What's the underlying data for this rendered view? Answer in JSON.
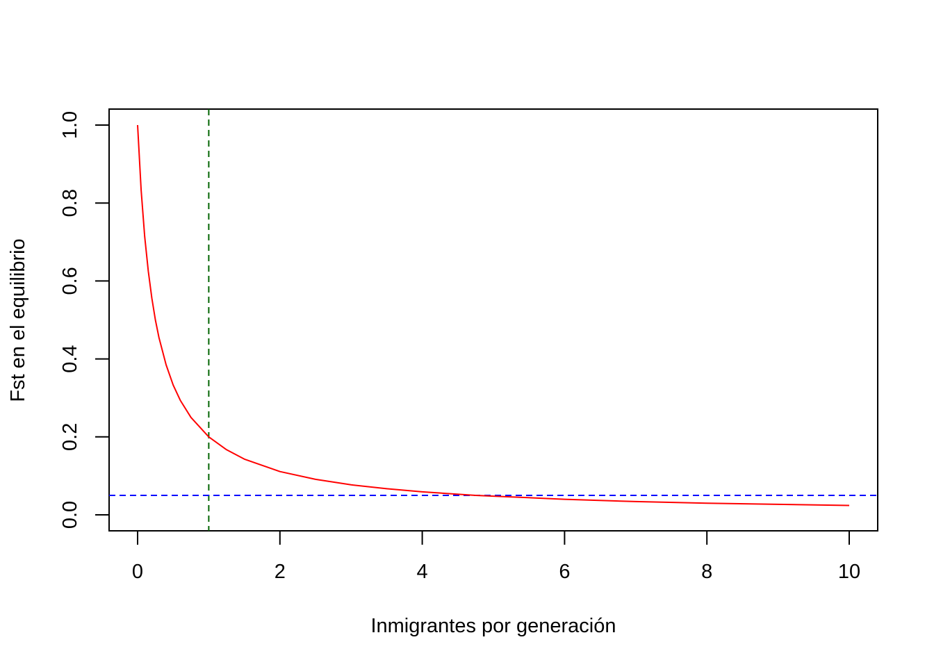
{
  "chart_data": {
    "type": "line",
    "title": "",
    "xlabel": "Inmigrantes por generación",
    "ylabel": "Fst en el equilibrio",
    "xlim": [
      0,
      10
    ],
    "ylim": [
      0,
      1
    ],
    "x_ticks": [
      "0",
      "2",
      "4",
      "6",
      "8",
      "10"
    ],
    "y_ticks": [
      "0.0",
      "0.2",
      "0.4",
      "0.6",
      "0.8",
      "1.0"
    ],
    "grid": false,
    "legend": "none",
    "series": [
      {
        "color": "#FF0000",
        "style": "solid",
        "x": [
          0,
          0.05,
          0.1,
          0.15,
          0.2,
          0.25,
          0.3,
          0.4,
          0.5,
          0.6,
          0.75,
          1,
          1.25,
          1.5,
          2,
          2.5,
          3,
          3.5,
          4,
          4.75,
          5,
          6,
          7,
          8,
          9,
          10
        ],
        "y": [
          1.0,
          0.833,
          0.714,
          0.625,
          0.556,
          0.5,
          0.455,
          0.385,
          0.333,
          0.294,
          0.25,
          0.2,
          0.167,
          0.143,
          0.111,
          0.091,
          0.077,
          0.067,
          0.059,
          0.05,
          0.048,
          0.04,
          0.034,
          0.03,
          0.027,
          0.024
        ]
      }
    ],
    "reference_lines": [
      {
        "orientation": "vertical",
        "value": 1,
        "color": "#006400",
        "style": "dashed"
      },
      {
        "orientation": "horizontal",
        "value": 0.05,
        "color": "#0000FF",
        "style": "dashed"
      }
    ]
  }
}
